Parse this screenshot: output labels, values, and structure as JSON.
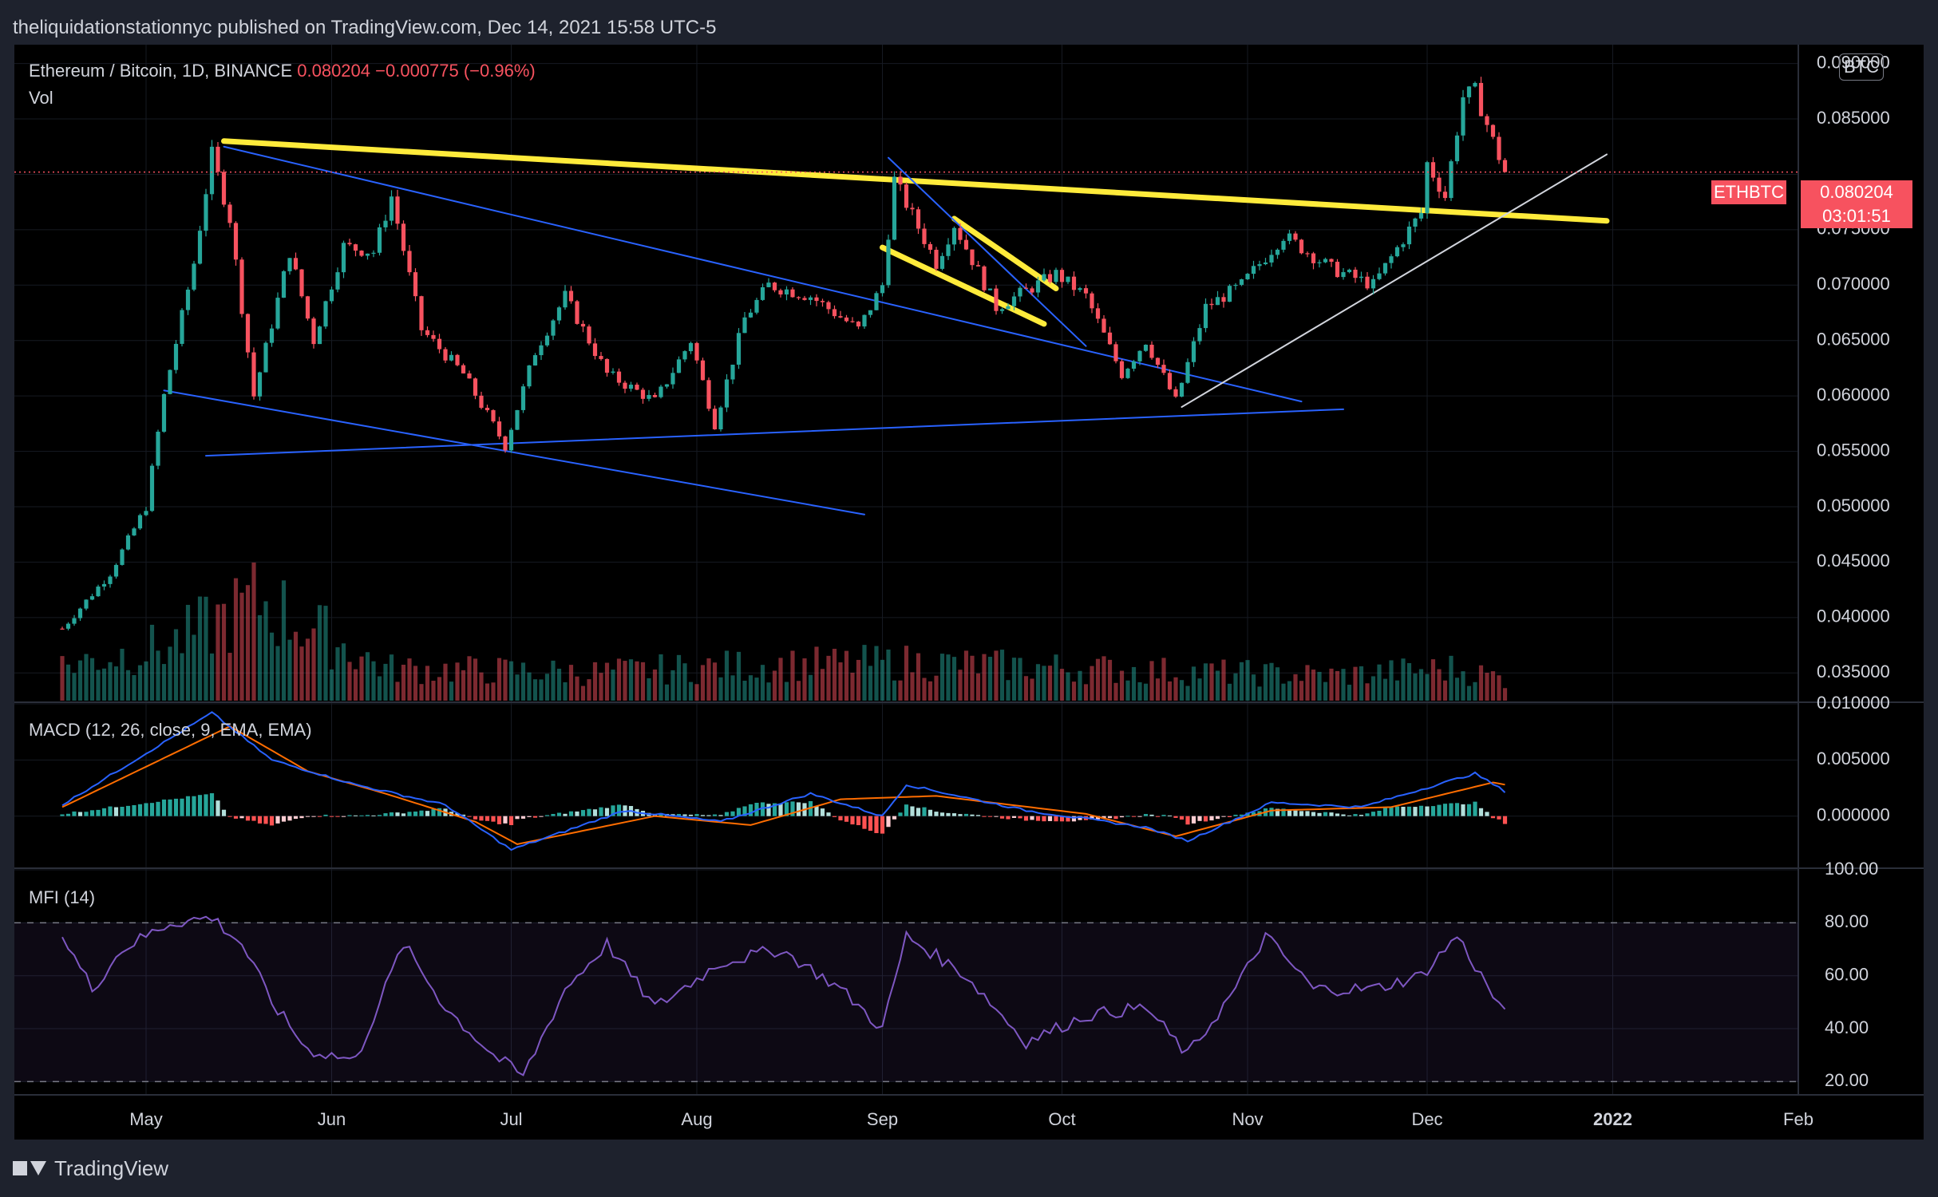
{
  "header": {
    "publisher_line": "theliquidationstationnyc published on TradingView.com, Dec 14, 2021 15:58 UTC-5"
  },
  "legend": {
    "symbol": "Ethereum / Bitcoin, 1D, BINANCE",
    "last": "0.080204",
    "change": "−0.000775 (−0.96%)",
    "vol_label": "Vol",
    "macd_label": "MACD (12, 26, close, 9, EMA, EMA)",
    "mfi_label": "MFI (14)"
  },
  "axis": {
    "currency": "BTC"
  },
  "badges": {
    "symbol": "ETHBTC",
    "price": "0.080204",
    "countdown": "03:01:51"
  },
  "footer": {
    "brand": "TradingView"
  },
  "colors": {
    "up": "#26a69a",
    "down": "#f7525f",
    "trendline": "#ffeb3b",
    "channel": "#2962ff",
    "support": "#d1d4dc",
    "macd": "#2962ff",
    "signal": "#ff6d00",
    "mfi": "#7e57c2"
  },
  "chart_data": [
    {
      "type": "candlestick",
      "title": "Ethereum / Bitcoin, 1D, BINANCE",
      "x_ticks": [
        "May",
        "Jun",
        "Jul",
        "Aug",
        "Sep",
        "Oct",
        "Nov",
        "Dec",
        "2022",
        "Feb"
      ],
      "y_ticks": [
        "0.090000",
        "0.085000",
        "0.080000",
        "0.075000",
        "0.070000",
        "0.065000",
        "0.060000",
        "0.055000",
        "0.050000",
        "0.045000",
        "0.040000",
        "0.035000"
      ],
      "ylim": [
        0.0325,
        0.0917
      ],
      "close_path": [
        [
          "2021-04-17",
          0.039
        ],
        [
          "2021-04-25",
          0.044
        ],
        [
          "2021-05-01",
          0.05
        ],
        [
          "2021-05-04",
          0.06
        ],
        [
          "2021-05-09",
          0.072
        ],
        [
          "2021-05-12",
          0.0818
        ],
        [
          "2021-05-15",
          0.076
        ],
        [
          "2021-05-19",
          0.06
        ],
        [
          "2021-05-25",
          0.073
        ],
        [
          "2021-05-29",
          0.065
        ],
        [
          "2021-06-03",
          0.0735
        ],
        [
          "2021-06-08",
          0.073
        ],
        [
          "2021-06-11",
          0.078
        ],
        [
          "2021-06-16",
          0.066
        ],
        [
          "2021-06-23",
          0.062
        ],
        [
          "2021-06-30",
          0.0555
        ],
        [
          "2021-07-05",
          0.064
        ],
        [
          "2021-07-10",
          0.069
        ],
        [
          "2021-07-17",
          0.062
        ],
        [
          "2021-07-25",
          0.0595
        ],
        [
          "2021-07-31",
          0.065
        ],
        [
          "2021-08-04",
          0.0575
        ],
        [
          "2021-08-09",
          0.067
        ],
        [
          "2021-08-13",
          0.07
        ],
        [
          "2021-08-20",
          0.069
        ],
        [
          "2021-08-28",
          0.066
        ],
        [
          "2021-09-01",
          0.07
        ],
        [
          "2021-09-03",
          0.0795
        ],
        [
          "2021-09-10",
          0.072
        ],
        [
          "2021-09-13",
          0.0755
        ],
        [
          "2021-09-20",
          0.068
        ],
        [
          "2021-09-30",
          0.071
        ],
        [
          "2021-10-05",
          0.069
        ],
        [
          "2021-10-11",
          0.062
        ],
        [
          "2021-10-15",
          0.065
        ],
        [
          "2021-10-20",
          0.0595
        ],
        [
          "2021-10-25",
          0.068
        ],
        [
          "2021-10-31",
          0.07
        ],
        [
          "2021-11-07",
          0.0745
        ],
        [
          "2021-11-15",
          0.0715
        ],
        [
          "2021-11-22",
          0.07
        ],
        [
          "2021-11-28",
          0.075
        ],
        [
          "2021-11-30",
          0.0765
        ],
        [
          "2021-12-01",
          0.081
        ],
        [
          "2021-12-04",
          0.078
        ],
        [
          "2021-12-07",
          0.087
        ],
        [
          "2021-12-09",
          0.0875
        ],
        [
          "2021-12-12",
          0.083
        ],
        [
          "2021-12-14",
          0.0802
        ]
      ],
      "last": 0.080204,
      "drawings": [
        {
          "kind": "trendline",
          "color": "yellow",
          "from": [
            "2021-05-14",
            0.083
          ],
          "to": [
            "2021-12-31",
            0.0758
          ]
        },
        {
          "kind": "trendline",
          "color": "yellow",
          "from": [
            "2021-09-01",
            0.0734
          ],
          "to": [
            "2021-09-28",
            0.0665
          ]
        },
        {
          "kind": "trendline",
          "color": "yellow",
          "from": [
            "2021-09-13",
            0.076
          ],
          "to": [
            "2021-09-30",
            0.0697
          ]
        },
        {
          "kind": "trendline",
          "color": "blue",
          "from": [
            "2021-05-14",
            0.0825
          ],
          "to": [
            "2021-11-10",
            0.0595
          ]
        },
        {
          "kind": "trendline",
          "color": "blue",
          "from": [
            "2021-05-04",
            0.0605
          ],
          "to": [
            "2021-08-29",
            0.0493
          ]
        },
        {
          "kind": "trendline",
          "color": "blue",
          "from": [
            "2021-05-11",
            0.0546
          ],
          "to": [
            "2021-11-17",
            0.0588
          ]
        },
        {
          "kind": "trendline",
          "color": "blue",
          "from": [
            "2021-09-02",
            0.0815
          ],
          "to": [
            "2021-10-05",
            0.0645
          ]
        },
        {
          "kind": "trendline",
          "color": "white",
          "from": [
            "2021-10-21",
            0.059
          ],
          "to": [
            "2021-12-31",
            0.0818
          ]
        }
      ]
    },
    {
      "type": "bar",
      "title": "Vol",
      "volume_profile": [
        [
          "2021-04-17",
          0.35
        ],
        [
          "2021-05-05",
          0.55
        ],
        [
          "2021-05-20",
          1.0
        ],
        [
          "2021-06-10",
          0.32
        ],
        [
          "2021-07-15",
          0.28
        ],
        [
          "2021-08-10",
          0.35
        ],
        [
          "2021-09-05",
          0.38
        ],
        [
          "2021-10-15",
          0.3
        ],
        [
          "2021-11-15",
          0.25
        ],
        [
          "2021-12-05",
          0.32
        ],
        [
          "2021-12-14",
          0.22
        ]
      ]
    },
    {
      "type": "line",
      "title": "MACD (12, 26, close, 9, EMA, EMA)",
      "y_ticks": [
        "0.010000",
        "0.005000",
        "0.000000"
      ],
      "ylim": [
        -0.0045,
        0.01
      ],
      "series": [
        {
          "name": "MACD",
          "points": [
            [
              "2021-04-17",
              0.001
            ],
            [
              "2021-05-12",
              0.0092
            ],
            [
              "2021-05-22",
              0.005
            ],
            [
              "2021-06-05",
              0.0028
            ],
            [
              "2021-06-20",
              0.001
            ],
            [
              "2021-07-01",
              -0.003
            ],
            [
              "2021-07-20",
              0.0005
            ],
            [
              "2021-08-05",
              -0.0005
            ],
            [
              "2021-08-20",
              0.002
            ],
            [
              "2021-09-01",
              0.0
            ],
            [
              "2021-09-05",
              0.0028
            ],
            [
              "2021-09-25",
              0.0005
            ],
            [
              "2021-10-15",
              -0.001
            ],
            [
              "2021-10-22",
              -0.0022
            ],
            [
              "2021-11-05",
              0.0012
            ],
            [
              "2021-11-20",
              0.0008
            ],
            [
              "2021-12-09",
              0.0038
            ],
            [
              "2021-12-14",
              0.0022
            ]
          ]
        },
        {
          "name": "Signal",
          "points": [
            [
              "2021-04-17",
              0.0008
            ],
            [
              "2021-05-15",
              0.008
            ],
            [
              "2021-05-28",
              0.004
            ],
            [
              "2021-06-10",
              0.002
            ],
            [
              "2021-06-25",
              -0.0005
            ],
            [
              "2021-07-02",
              -0.0025
            ],
            [
              "2021-07-25",
              0.0
            ],
            [
              "2021-08-10",
              -0.0008
            ],
            [
              "2021-08-25",
              0.0015
            ],
            [
              "2021-09-10",
              0.0018
            ],
            [
              "2021-10-05",
              0.0002
            ],
            [
              "2021-10-20",
              -0.0018
            ],
            [
              "2021-11-05",
              0.0005
            ],
            [
              "2021-11-25",
              0.0008
            ],
            [
              "2021-12-12",
              0.003
            ],
            [
              "2021-12-14",
              0.0028
            ]
          ]
        }
      ]
    },
    {
      "type": "line",
      "title": "MFI (14)",
      "y_ticks": [
        "100.00",
        "80.00",
        "60.00",
        "40.00",
        "20.00"
      ],
      "ylim": [
        15,
        100
      ],
      "bands": [
        20,
        80
      ],
      "series": [
        {
          "name": "MFI",
          "points": [
            [
              "2021-04-17",
              75
            ],
            [
              "2021-04-22",
              55
            ],
            [
              "2021-04-27",
              70
            ],
            [
              "2021-05-05",
              80
            ],
            [
              "2021-05-12",
              82
            ],
            [
              "2021-05-17",
              72
            ],
            [
              "2021-05-22",
              50
            ],
            [
              "2021-05-28",
              32
            ],
            [
              "2021-06-05",
              28
            ],
            [
              "2021-06-13",
              72
            ],
            [
              "2021-06-20",
              48
            ],
            [
              "2021-06-28",
              30
            ],
            [
              "2021-07-03",
              22
            ],
            [
              "2021-07-10",
              55
            ],
            [
              "2021-07-17",
              72
            ],
            [
              "2021-07-25",
              48
            ],
            [
              "2021-08-05",
              65
            ],
            [
              "2021-08-15",
              70
            ],
            [
              "2021-08-25",
              55
            ],
            [
              "2021-09-01",
              40
            ],
            [
              "2021-09-05",
              75
            ],
            [
              "2021-09-15",
              60
            ],
            [
              "2021-09-25",
              35
            ],
            [
              "2021-10-05",
              45
            ],
            [
              "2021-10-15",
              48
            ],
            [
              "2021-10-22",
              30
            ],
            [
              "2021-10-30",
              55
            ],
            [
              "2021-11-04",
              75
            ],
            [
              "2021-11-12",
              55
            ],
            [
              "2021-11-22",
              55
            ],
            [
              "2021-11-30",
              60
            ],
            [
              "2021-12-06",
              75
            ],
            [
              "2021-12-10",
              60
            ],
            [
              "2021-12-14",
              45
            ]
          ]
        }
      ]
    }
  ]
}
